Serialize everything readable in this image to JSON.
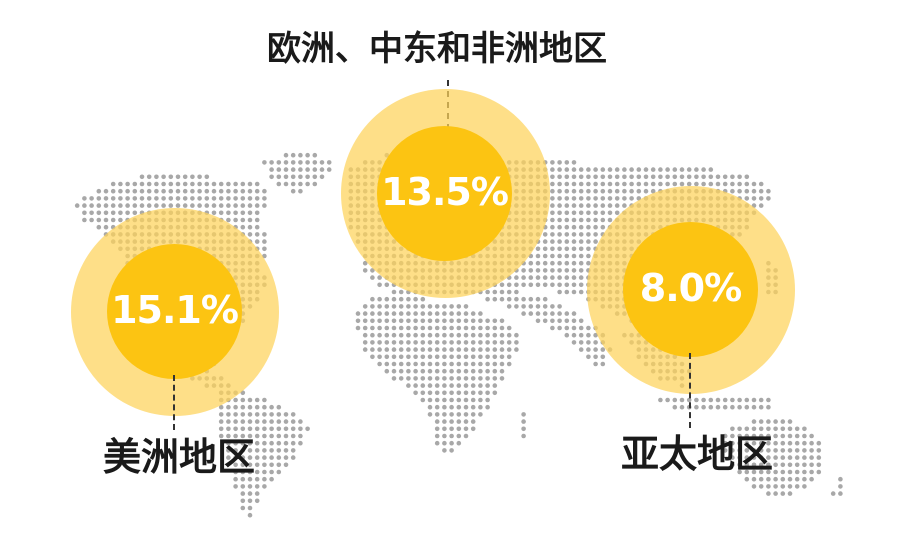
{
  "regions": {
    "americas": {
      "name": "美洲地区",
      "value": "15.1%"
    },
    "emea": {
      "name": "欧洲、中东和非洲地区",
      "value": "13.5%"
    },
    "apac": {
      "name": "亚太地区",
      "value": "8.0%"
    }
  },
  "colors": {
    "halo": "#fdd25a",
    "core": "#fcc412",
    "map_dots": "#a8a8a8",
    "text": "#1a1a1a"
  }
}
